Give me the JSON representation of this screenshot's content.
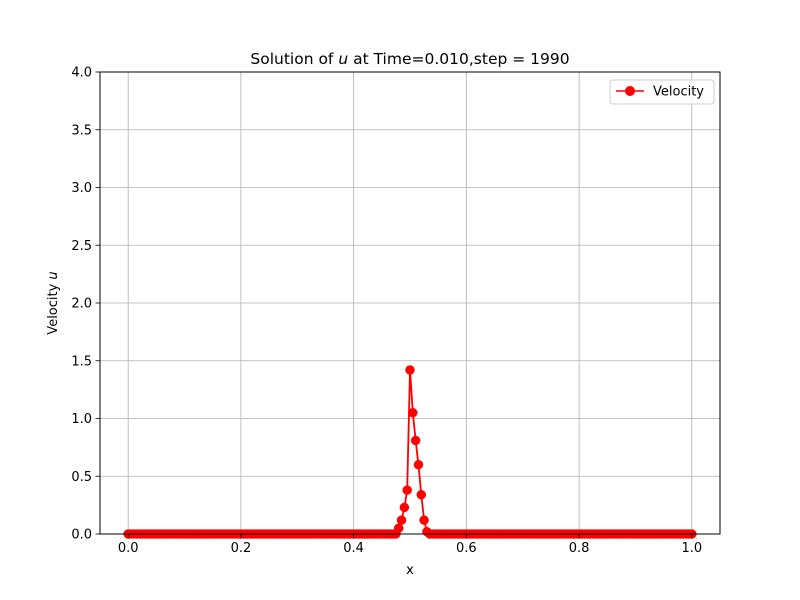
{
  "chart_data": {
    "type": "line",
    "title_prefix": "Solution of ",
    "title_var": "u",
    "title_suffix": " at Time=0.010,step = 1990",
    "xlabel": "x",
    "ylabel_prefix": "Velocity ",
    "ylabel_var": "u",
    "xlim": [
      -0.05,
      1.05
    ],
    "ylim": [
      0.0,
      4.0
    ],
    "x_ticks": [
      0.0,
      0.2,
      0.4,
      0.6,
      0.8,
      1.0
    ],
    "x_tick_labels": [
      "0.0",
      "0.2",
      "0.4",
      "0.6",
      "0.8",
      "1.0"
    ],
    "y_ticks": [
      0.0,
      0.5,
      1.0,
      1.5,
      2.0,
      2.5,
      3.0,
      3.5,
      4.0
    ],
    "y_tick_labels": [
      "0.0",
      "0.5",
      "1.0",
      "1.5",
      "2.0",
      "2.5",
      "3.0",
      "3.5",
      "4.0"
    ],
    "grid": true,
    "legend_position": "top-right",
    "series": [
      {
        "name": "Velocity",
        "color": "#ff0000",
        "marker": "circle",
        "x_start": 0.0,
        "x_step": 0.005,
        "n_points": 201,
        "nonzero": {
          "96": 0.05,
          "97": 0.12,
          "98": 0.23,
          "99": 0.38,
          "100": 1.42,
          "101": 1.05,
          "102": 0.81,
          "103": 0.6,
          "104": 0.34,
          "105": 0.12,
          "106": 0.02
        },
        "default_value": 0.0
      }
    ]
  }
}
